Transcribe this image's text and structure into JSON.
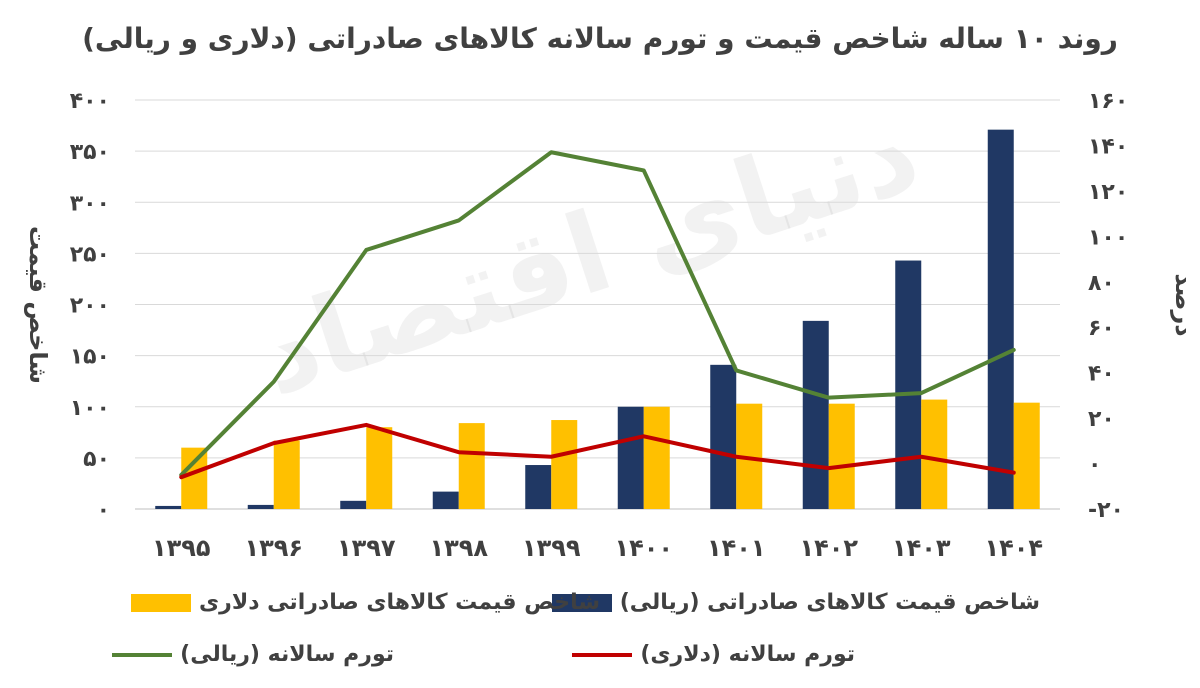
{
  "chart_data": {
    "type": "bar",
    "title": "روند ۱۰ ساله شاخص قیمت و تورم سالانه کالاهای صادراتی  (دلاری و ریالی)",
    "categories": [
      "۱۳۹۵",
      "۱۳۹۶",
      "۱۳۹۷",
      "۱۳۹۸",
      "۱۳۹۹",
      "۱۴۰۰",
      "۱۴۰۱",
      "۱۴۰۲",
      "۱۴۰۳",
      "۱۴۰۴"
    ],
    "ylabel_left": "شاخص قیمت",
    "ylabel_right": "درصد",
    "ylim_left": [
      0,
      400
    ],
    "ylim_right": [
      -20,
      160
    ],
    "yticks_left": [
      "۰",
      "۵۰",
      "۱۰۰",
      "۱۵۰",
      "۲۰۰",
      "۲۵۰",
      "۳۰۰",
      "۳۵۰",
      "۴۰۰"
    ],
    "yticks_right": [
      "-۲۰",
      "۰",
      "۲۰",
      "۴۰",
      "۶۰",
      "۸۰",
      "۱۰۰",
      "۱۲۰",
      "۱۴۰",
      "۱۶۰"
    ],
    "grid": true,
    "legend_position": "bottom",
    "series": [
      {
        "name": "شاخص قیمت  کالاهای صادراتی (ریالی)",
        "kind": "bar",
        "axis": "left",
        "color": "#203864",
        "values": [
          3,
          4,
          8,
          17,
          43,
          100,
          141,
          184,
          243,
          371
        ]
      },
      {
        "name": "شاخص قیمت کالاهای صادراتی دلاری",
        "kind": "bar",
        "axis": "left",
        "color": "#FFC000",
        "values": [
          60,
          67,
          80,
          84,
          87,
          100,
          103,
          103,
          107,
          104
        ]
      },
      {
        "name": "تورم سالانه (ریالی)",
        "kind": "line",
        "axis": "right",
        "color": "#548235",
        "values": [
          -5,
          36,
          94,
          107,
          137,
          129,
          41,
          29,
          31,
          50
        ]
      },
      {
        "name": "تورم سالانه (دلاری)",
        "kind": "line",
        "axis": "right",
        "color": "#C00000",
        "values": [
          -6,
          9,
          17,
          5,
          3,
          12,
          3,
          -2,
          3,
          -4
        ]
      }
    ]
  },
  "watermark": "دنیای اقتصاد"
}
